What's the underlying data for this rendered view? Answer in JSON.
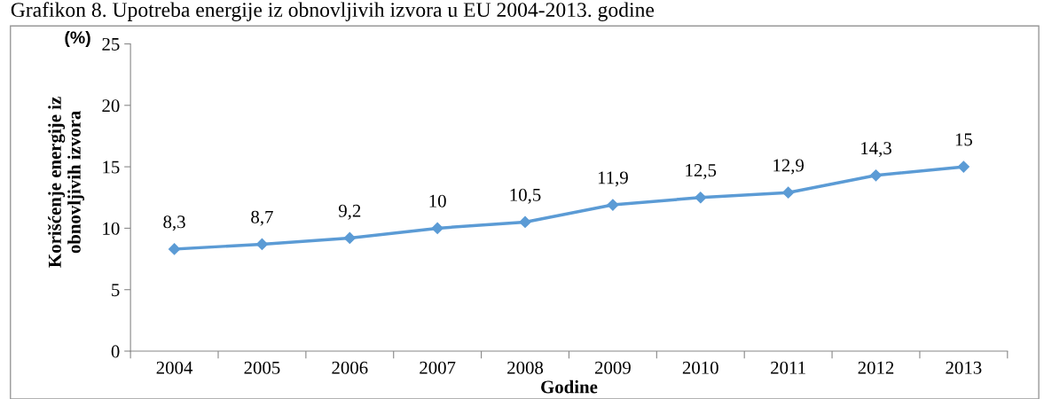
{
  "chart_data": {
    "type": "line",
    "title": "Grafikon 8. Upotreba energije iz obnovljivih izvora u EU 2004-2013. godine",
    "xlabel": "Godine",
    "ylabel": "Korišćenje energije iz obnovljivih izvora",
    "annotations": [
      "(%)"
    ],
    "categories": [
      "2004",
      "2005",
      "2006",
      "2007",
      "2008",
      "2009",
      "2010",
      "2011",
      "2012",
      "2013"
    ],
    "series": [
      {
        "color": "#5b9bd5",
        "values": [
          8.3,
          8.7,
          9.2,
          10,
          10.5,
          11.9,
          12.5,
          12.9,
          14.3,
          15
        ]
      }
    ],
    "value_labels": [
      "8,3",
      "8,7",
      "9,2",
      "10",
      "10,5",
      "11,9",
      "12,5",
      "12,9",
      "14,3",
      "15"
    ],
    "ylim": [
      0,
      25
    ],
    "yticks": [
      0,
      5,
      10,
      15,
      20,
      25
    ],
    "marker": "diamond",
    "line_style": "solid",
    "grid": false,
    "legend": false
  }
}
